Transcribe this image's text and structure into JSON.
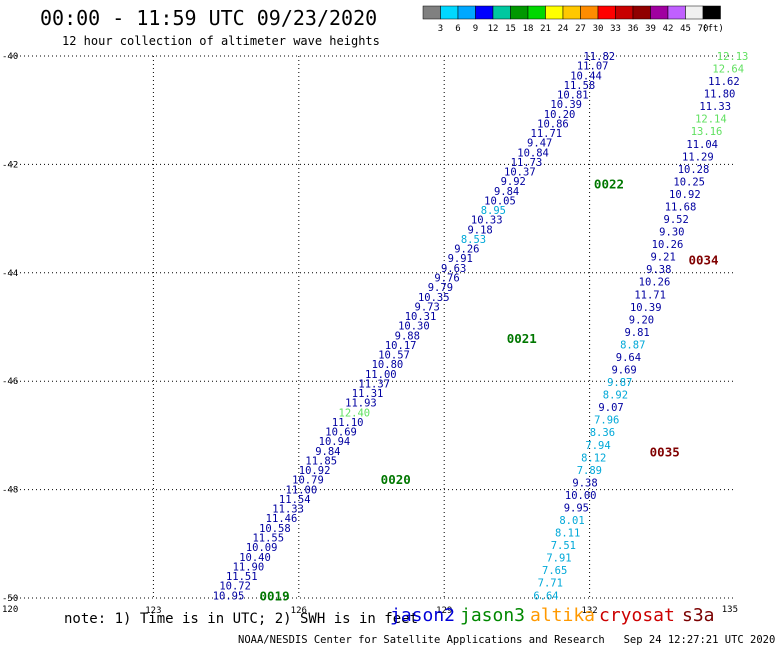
{
  "header": {
    "title": "00:00 - 11:59 UTC 09/23/2020",
    "subtitle": "12 hour collection of altimeter wave heights"
  },
  "colorbar": {
    "labels": [
      "3",
      "6",
      "9",
      "12",
      "15",
      "18",
      "21",
      "24",
      "27",
      "30",
      "33",
      "36",
      "39",
      "42",
      "45",
      "70"
    ],
    "unit": "(ft)",
    "colors": [
      "#808080",
      "#00d8ff",
      "#00a8ff",
      "#0000ff",
      "#00c8a0",
      "#009800",
      "#00d800",
      "#ffff00",
      "#ffc800",
      "#ff8c00",
      "#ff0000",
      "#c80000",
      "#900000",
      "#a000a0",
      "#c060ff",
      "#f0f0f0",
      "#000000"
    ]
  },
  "footer": {
    "note": "note: 1) Time is in UTC; 2) SWH is in feet",
    "credit": "NOAA/NESDIS Center for Satellite Applications and Research   Sep 24 12:27:21 UTC 2020",
    "satellites": [
      {
        "name": "jason2",
        "color": "#0000d8"
      },
      {
        "name": "jason3",
        "color": "#008800"
      },
      {
        "name": "altika",
        "color": "#ff9900"
      },
      {
        "name": "cryosat",
        "color": "#cc0000"
      },
      {
        "name": "s3a",
        "color": "#7a0000"
      }
    ]
  },
  "chart_data": {
    "type": "scatter",
    "xlim": [
      120,
      135
    ],
    "ylim": [
      -50,
      -40
    ],
    "xticks": [
      "120",
      "123",
      "126",
      "129",
      "132",
      "135"
    ],
    "yticks": [
      "-40",
      "-42",
      "-44",
      "-46",
      "-48",
      "-50"
    ],
    "grid": true,
    "point_colors": {
      "dark_blue": "#0000a0",
      "light_blue": "#00a8d8",
      "light_green": "#60e060"
    },
    "pass_labels": [
      {
        "text": "0019",
        "lon": 125.5,
        "lat": -49.95,
        "color": "#007700"
      },
      {
        "text": "0020",
        "lon": 128.0,
        "lat": -47.8,
        "color": "#007700"
      },
      {
        "text": "0021",
        "lon": 130.6,
        "lat": -45.2,
        "color": "#007700"
      },
      {
        "text": "0022",
        "lon": 132.4,
        "lat": -42.35,
        "color": "#007700"
      },
      {
        "text": "0034",
        "lon": 134.35,
        "lat": -43.75,
        "color": "#800000"
      },
      {
        "text": "0035",
        "lon": 133.55,
        "lat": -47.3,
        "color": "#800000"
      }
    ],
    "series": [
      {
        "pass": "A",
        "lon_start": 124.55,
        "lat_start": -49.95,
        "lon_end": 132.2,
        "lat_end": -40.0,
        "values": [
          "10.95",
          "10.72",
          "11.51",
          "11.90",
          "10.40",
          "10.09",
          "11.55",
          "10.58",
          "11.46",
          "11.33",
          "11.54",
          "11.00",
          "10.79",
          "10.92",
          "11.85",
          "9.84",
          "10.94",
          "10.69",
          "11.10",
          "12.40",
          "11.93",
          "11.31",
          "11.37",
          "11.00",
          "10.80",
          "10.57",
          "10.17",
          "9.88",
          "10.30",
          "10.31",
          "9.73",
          "10.35",
          "9.79",
          "9.76",
          "9.63",
          "9.91",
          "9.26",
          "8.53",
          "9.18",
          "10.33",
          "8.95",
          "10.05",
          "9.84",
          "9.92",
          "10.37",
          "11.73",
          "10.84",
          "9.47",
          "11.71",
          "10.86",
          "10.20",
          "10.39",
          "10.81",
          "11.58",
          "10.44",
          "11.07",
          "11.82"
        ],
        "colors": [
          "d",
          "d",
          "d",
          "d",
          "d",
          "d",
          "d",
          "d",
          "d",
          "d",
          "d",
          "d",
          "d",
          "d",
          "d",
          "d",
          "d",
          "d",
          "d",
          "g",
          "d",
          "d",
          "d",
          "d",
          "d",
          "d",
          "d",
          "d",
          "d",
          "d",
          "d",
          "d",
          "d",
          "d",
          "d",
          "d",
          "d",
          "l",
          "d",
          "d",
          "l",
          "d",
          "d",
          "d",
          "d",
          "d",
          "d",
          "d",
          "d",
          "d",
          "d",
          "d",
          "d",
          "d",
          "d",
          "d",
          "d"
        ]
      },
      {
        "pass": "B",
        "lon_start": 131.1,
        "lat_start": -49.95,
        "lon_end": 134.95,
        "lat_end": -40.0,
        "values": [
          "6.64",
          "7.71",
          "7.65",
          "7.91",
          "7.51",
          "8.11",
          "8.01",
          "9.95",
          "10.00",
          "9.38",
          "7.89",
          "8.12",
          "7.94",
          "8.36",
          "7.96",
          "9.07",
          "8.92",
          "9.87",
          "9.69",
          "9.64",
          "8.87",
          "9.81",
          "9.20",
          "10.39",
          "11.71",
          "10.26",
          "9.38",
          "9.21",
          "10.26",
          "9.30",
          "9.52",
          "11.68",
          "10.92",
          "10.25",
          "10.28",
          "11.29",
          "11.04",
          "13.16",
          "12.14",
          "11.33",
          "11.80",
          "11.62",
          "12.64",
          "12.13"
        ],
        "colors": [
          "l",
          "l",
          "l",
          "l",
          "l",
          "l",
          "l",
          "d",
          "d",
          "d",
          "l",
          "l",
          "l",
          "l",
          "l",
          "d",
          "l",
          "l",
          "d",
          "d",
          "l",
          "d",
          "d",
          "d",
          "d",
          "d",
          "d",
          "d",
          "d",
          "d",
          "d",
          "d",
          "d",
          "d",
          "d",
          "d",
          "d",
          "g",
          "g",
          "d",
          "d",
          "d",
          "g",
          "g"
        ]
      }
    ]
  }
}
